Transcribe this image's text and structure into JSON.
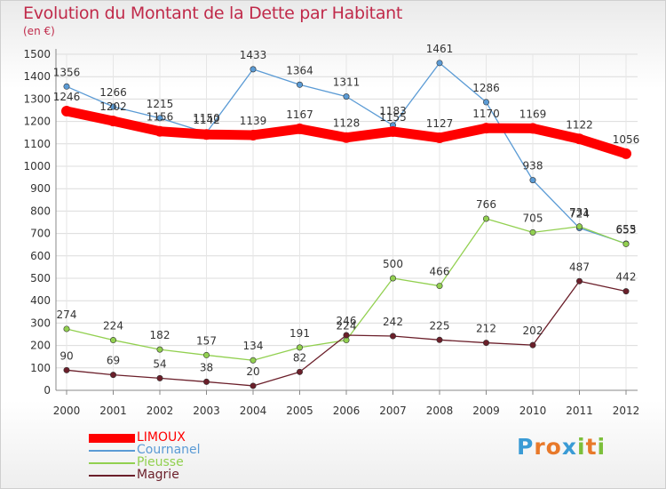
{
  "chart_data": {
    "type": "line",
    "title": "Evolution du Montant de la Dette par Habitant",
    "subtitle": "(en €)",
    "xlabel": "",
    "ylabel": "",
    "categories": [
      "2000",
      "2001",
      "2002",
      "2003",
      "2004",
      "2005",
      "2006",
      "2007",
      "2008",
      "2009",
      "2010",
      "2011",
      "2012"
    ],
    "ylim": [
      0,
      1500
    ],
    "yticks": [
      0,
      100,
      200,
      300,
      400,
      500,
      600,
      700,
      800,
      900,
      1000,
      1100,
      1200,
      1300,
      1400,
      1500
    ],
    "grid": true,
    "legend_position": "bottom-left",
    "series": [
      {
        "name": "LIMOUX",
        "color": "#ff0000",
        "values": [
          1246,
          1202,
          1156,
          1142,
          1139,
          1167,
          1128,
          1155,
          1127,
          1170,
          1169,
          1122,
          1056
        ]
      },
      {
        "name": "Cournanel",
        "color": "#5b9bd5",
        "values": [
          1356,
          1266,
          1215,
          1150,
          1433,
          1364,
          1311,
          1183,
          1461,
          1286,
          938,
          724,
          655
        ]
      },
      {
        "name": "Pieusse",
        "color": "#92d050",
        "values": [
          274,
          224,
          182,
          157,
          134,
          191,
          224,
          500,
          466,
          766,
          705,
          731,
          653
        ]
      },
      {
        "name": "Magrie",
        "color": "#6b1f2a",
        "values": [
          90,
          69,
          54,
          38,
          20,
          82,
          246,
          242,
          225,
          212,
          202,
          487,
          442
        ]
      }
    ]
  },
  "branding": {
    "logo_letters": [
      "P",
      "r",
      "o",
      "x",
      "i",
      "t",
      "i"
    ],
    "logo_colors": [
      "#3a9bd5",
      "#e8792a",
      "#e8792a",
      "#3a9bd5",
      "#7cbf3a",
      "#e8792a",
      "#7cbf3a"
    ]
  }
}
